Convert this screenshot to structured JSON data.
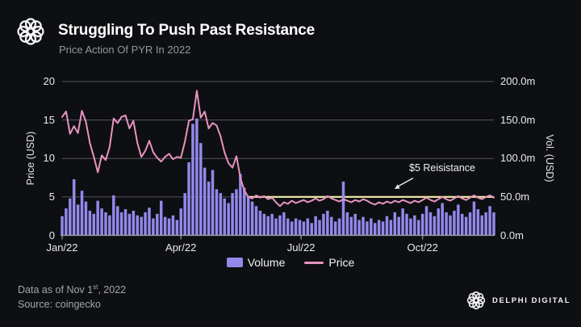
{
  "header": {
    "title": "Struggling To Push Past Resistance",
    "subtitle": "Price Action Of PYR In 2022"
  },
  "colors": {
    "background": "#0e0f12",
    "grid": "#54555d",
    "baseline": "#9fa2a8",
    "volume": "#9388ec",
    "price": "#e793c0",
    "resistance": "#e9e3a3",
    "annotation_arrow": "#e9eaee"
  },
  "chart_data": {
    "type": "combo",
    "title": "Price Action Of PYR In 2022",
    "x": {
      "unit": "date",
      "interval_days": 3,
      "total_days": 327,
      "tick_labels": [
        "Jan/22",
        "Apr/22",
        "Jul/22",
        "Oct/22"
      ],
      "tick_day_index": [
        0,
        90,
        181,
        273
      ]
    },
    "left_axis": {
      "title": "Price (USD)",
      "ticks": [
        0,
        5,
        10,
        15,
        20
      ],
      "range": [
        0,
        20
      ]
    },
    "right_axis": {
      "title": "Vol. (USD)",
      "tick_labels": [
        "0.0m",
        "50.0m",
        "100.0m",
        "150.0m",
        "200.0m"
      ],
      "tick_values_m": [
        0,
        50,
        100,
        150,
        200
      ],
      "range_m": [
        0,
        200
      ]
    },
    "grid_values": [
      5,
      10,
      15,
      20
    ],
    "series": [
      {
        "name": "Volume",
        "type": "bar",
        "axis": "right",
        "unit": "USD millions",
        "color": "#9388ec",
        "values": [
          25,
          35,
          48,
          73,
          40,
          58,
          44,
          32,
          28,
          45,
          35,
          30,
          26,
          52,
          38,
          30,
          34,
          28,
          32,
          26,
          24,
          30,
          36,
          22,
          28,
          45,
          24,
          22,
          26,
          20,
          35,
          55,
          95,
          145,
          152,
          120,
          88,
          70,
          85,
          60,
          55,
          48,
          42,
          55,
          60,
          80,
          62,
          50,
          44,
          38,
          32,
          28,
          25,
          28,
          22,
          26,
          30,
          22,
          18,
          22,
          20,
          18,
          22,
          16,
          25,
          20,
          28,
          32,
          24,
          18,
          22,
          70,
          30,
          24,
          28,
          20,
          24,
          18,
          22,
          16,
          20,
          18,
          25,
          20,
          30,
          24,
          35,
          28,
          22,
          26,
          20,
          28,
          38,
          30,
          25,
          35,
          42,
          30,
          26,
          32,
          40,
          28,
          24,
          30,
          44,
          34,
          26,
          30,
          38,
          30
        ]
      },
      {
        "name": "Price",
        "type": "line",
        "axis": "left",
        "unit": "USD",
        "color": "#e793c0",
        "values": [
          15.4,
          16.1,
          13.2,
          14.2,
          13.3,
          16.2,
          14.8,
          12.0,
          10.2,
          8.2,
          10.4,
          9.8,
          11.5,
          15.2,
          14.6,
          15.4,
          15.6,
          13.9,
          14.9,
          12.0,
          10.2,
          11.0,
          12.3,
          10.8,
          10.1,
          9.6,
          10.2,
          10.6,
          9.9,
          10.2,
          10.1,
          12.2,
          14.9,
          15.1,
          18.8,
          15.3,
          16.1,
          13.9,
          14.6,
          14.3,
          12.9,
          10.8,
          9.4,
          8.8,
          10.3,
          7.5,
          5.8,
          5.0,
          4.8,
          5.2,
          4.9,
          5.1,
          4.7,
          4.9,
          4.3,
          3.8,
          4.3,
          4.1,
          4.5,
          4.2,
          4.4,
          4.6,
          4.3,
          4.5,
          4.8,
          4.5,
          4.7,
          5.1,
          4.8,
          4.6,
          4.4,
          4.7,
          4.5,
          4.3,
          4.6,
          4.4,
          4.7,
          4.5,
          4.2,
          4.0,
          4.3,
          4.1,
          4.4,
          4.2,
          4.5,
          4.3,
          4.6,
          4.4,
          4.2,
          4.5,
          4.3,
          4.6,
          4.9,
          4.6,
          4.4,
          4.7,
          5.0,
          4.7,
          4.5,
          4.8,
          5.1,
          4.8,
          4.6,
          4.9,
          5.2,
          4.9,
          4.7,
          5.0,
          5.2,
          4.9
        ]
      }
    ],
    "resistance": {
      "label": "$5 Reisistance",
      "value": 5,
      "start_day": 141,
      "color": "#e9e3a3"
    },
    "legend_position": "bottom-center"
  },
  "footer": {
    "line1_prefix": "Data as of Nov 1",
    "line1_sup": "st",
    "line1_suffix": ", 2022",
    "source": "Source: coingecko",
    "brand": "DELPHI DIGITAL"
  }
}
